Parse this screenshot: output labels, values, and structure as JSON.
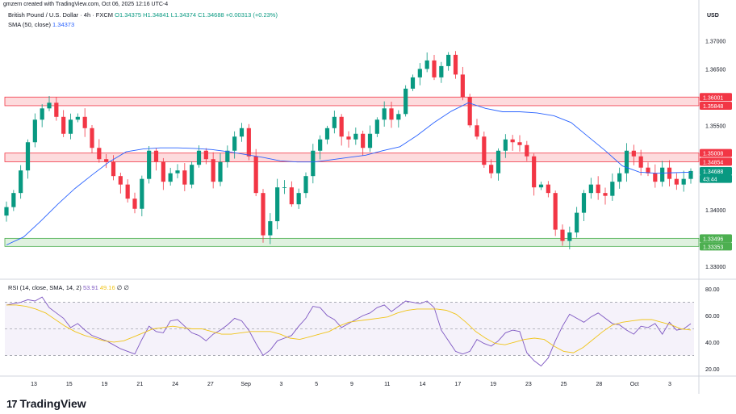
{
  "header": {
    "credit": "gmzern created with TradingView.com, Oct 06, 2025 12:16 UTC-4"
  },
  "legend": {
    "symbol": "British Pound / U.S. Dollar · 4h · FXCM",
    "ohlc": "O1.34375  H1.34841  L1.34374  C1.34688  +0.00313 (+0.23%)",
    "sma_label": "SMA (50, close)",
    "sma_value": "1.34373"
  },
  "rsi_legend": {
    "label": "RSI (14, close, SMA, 14, 2)",
    "rsi_value": "53.91",
    "sma_value": "49.16",
    "extra": "∅ ∅"
  },
  "currency": "USD",
  "brand": {
    "name": "TradingView",
    "logo": "17"
  },
  "colors": {
    "up": "#089981",
    "down": "#f23645",
    "sma": "#2962ff",
    "rsi": "#7e57c2",
    "rsi_ma": "#f0c419",
    "resist_zone": "#f23645",
    "support_zone": "#4caf50"
  },
  "chart_data": [
    {
      "type": "candlestick",
      "title": "British Pound / U.S. Dollar · 4h · FXCM",
      "price_axis": {
        "ticks": [
          "1.37000",
          "1.36500",
          "1.35500",
          "1.34000",
          "1.33000"
        ],
        "tick_values": [
          1.37,
          1.365,
          1.355,
          1.34,
          1.33
        ],
        "range": [
          1.328,
          1.3755
        ]
      },
      "time_axis": {
        "ticks": [
          "13",
          "15",
          "19",
          "21",
          "24",
          "27",
          "Sep",
          "3",
          "5",
          "9",
          "11",
          "14",
          "17",
          "19",
          "23",
          "25",
          "28",
          "Oct",
          "3"
        ]
      },
      "price_labels": [
        {
          "value": 1.36001,
          "text": "1.36001",
          "kind": "resist"
        },
        {
          "value": 1.35848,
          "text": "1.35848",
          "kind": "resist"
        },
        {
          "value": 1.35008,
          "text": "1.35008",
          "kind": "resist"
        },
        {
          "value": 1.34854,
          "text": "1.34854",
          "kind": "resist"
        },
        {
          "value": 1.34688,
          "text": "1.34688",
          "kind": "last"
        },
        {
          "value": 1.3455,
          "text": "43:44",
          "kind": "countdown"
        },
        {
          "value": 1.33496,
          "text": "1.33496",
          "kind": "support"
        },
        {
          "value": 1.33353,
          "text": "1.33353",
          "kind": "support"
        }
      ],
      "zones": [
        {
          "kind": "resist",
          "from": 1.35848,
          "to": 1.36001
        },
        {
          "kind": "resist",
          "from": 1.34854,
          "to": 1.35008
        },
        {
          "kind": "support",
          "from": 1.33353,
          "to": 1.33496
        }
      ],
      "close_path": [
        1.3405,
        1.343,
        1.347,
        1.352,
        1.356,
        1.358,
        1.359,
        1.3565,
        1.3535,
        1.356,
        1.3565,
        1.3545,
        1.351,
        1.349,
        1.3485,
        1.346,
        1.3445,
        1.342,
        1.3402,
        1.3455,
        1.3505,
        1.3485,
        1.345,
        1.3465,
        1.347,
        1.3445,
        1.348,
        1.3505,
        1.349,
        1.345,
        1.3485,
        1.3505,
        1.353,
        1.3545,
        1.3495,
        1.343,
        1.3355,
        1.338,
        1.344,
        1.344,
        1.341,
        1.343,
        1.346,
        1.3505,
        1.3525,
        1.3545,
        1.3565,
        1.353,
        1.3525,
        1.3535,
        1.351,
        1.3535,
        1.356,
        1.358,
        1.356,
        1.357,
        1.3615,
        1.3635,
        1.365,
        1.3665,
        1.3635,
        1.3655,
        1.3675,
        1.364,
        1.36,
        1.355,
        1.353,
        1.348,
        1.3465,
        1.3505,
        1.3525,
        1.352,
        1.3515,
        1.3495,
        1.344,
        1.3445,
        1.343,
        1.3365,
        1.3345,
        1.336,
        1.3395,
        1.343,
        1.3445,
        1.343,
        1.3425,
        1.345,
        1.3465,
        1.3505,
        1.3495,
        1.3475,
        1.3465,
        1.345,
        1.3475,
        1.3455,
        1.3445,
        1.3455,
        1.3469
      ],
      "sma": {
        "name": "SMA (50, close)",
        "values": [
          1.3338,
          1.3352,
          1.338,
          1.341,
          1.3438,
          1.3462,
          1.3485,
          1.3503,
          1.3508,
          1.351,
          1.351,
          1.3509,
          1.3507,
          1.3503,
          1.3498,
          1.3493,
          1.3487,
          1.3485,
          1.3485,
          1.3489,
          1.3493,
          1.3497,
          1.3505,
          1.3512,
          1.3532,
          1.3555,
          1.3575,
          1.359,
          1.358,
          1.3574,
          1.3574,
          1.3572,
          1.3567,
          1.3555,
          1.353,
          1.3505,
          1.3478,
          1.3467,
          1.3465,
          1.3466,
          1.3467
        ]
      },
      "annotations": []
    },
    {
      "type": "line",
      "title": "RSI (14, close, SMA, 14, 2)",
      "y_axis": {
        "ticks": [
          "80.00",
          "60.00",
          "40.00",
          "20.00"
        ],
        "tick_values": [
          80,
          60,
          40,
          20
        ],
        "range": [
          15,
          85
        ]
      },
      "bands": {
        "upper": 70,
        "middle": 50,
        "lower": 30
      },
      "series": [
        {
          "name": "RSI",
          "values": [
            68,
            69,
            70,
            72,
            71,
            74,
            66,
            62,
            58,
            51,
            54,
            49,
            45,
            43,
            41,
            38,
            35,
            33,
            31,
            42,
            52,
            48,
            47,
            56,
            57,
            52,
            47,
            45,
            41,
            46,
            49,
            53,
            58,
            56,
            49,
            39,
            30,
            34,
            41,
            43,
            45,
            52,
            58,
            67,
            66,
            60,
            57,
            51,
            54,
            57,
            60,
            62,
            66,
            68,
            63,
            67,
            71,
            70,
            69,
            71,
            66,
            49,
            41,
            33,
            31,
            33,
            42,
            39,
            37,
            41,
            47,
            49,
            48,
            32,
            26,
            22,
            28,
            41,
            52,
            61,
            58,
            55,
            59,
            62,
            58,
            54,
            53,
            49,
            46,
            52,
            51,
            54,
            46,
            55,
            49,
            50,
            53.91
          ]
        },
        {
          "name": "SMA",
          "values": [
            68,
            68,
            67,
            65,
            62,
            57,
            52,
            48,
            45,
            43,
            41,
            40,
            41,
            44,
            47,
            50,
            51,
            52,
            51,
            50,
            50,
            48,
            46,
            46,
            47,
            48,
            48,
            48,
            46,
            43,
            42,
            44,
            46,
            48,
            52,
            55,
            56,
            57,
            58,
            59,
            62,
            64,
            65,
            65,
            65,
            64,
            61,
            55,
            48,
            43,
            39,
            38,
            40,
            42,
            43,
            42,
            37,
            33,
            32,
            36,
            42,
            48,
            53,
            55,
            56,
            57,
            57,
            55,
            53,
            50,
            49.16
          ]
        }
      ]
    }
  ]
}
